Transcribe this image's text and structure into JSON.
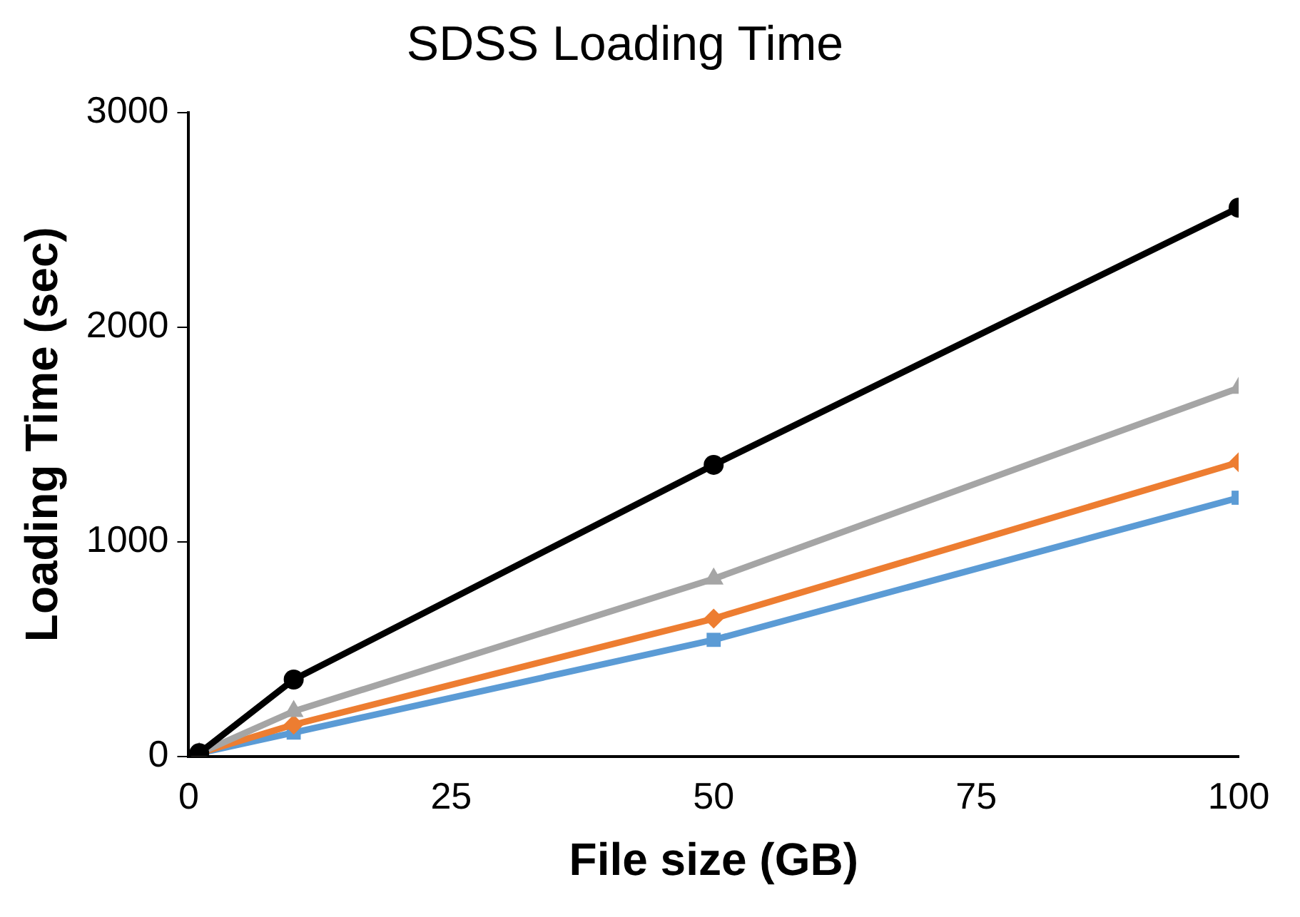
{
  "chart_data": {
    "type": "line",
    "title": "SDSS Loading Time",
    "xlabel": "File size (GB)",
    "ylabel": "Loading Time (sec)",
    "xlim": [
      0,
      100
    ],
    "xticks": [
      0,
      25,
      50,
      75,
      100
    ],
    "ylim": [
      0,
      3000
    ],
    "yticks": [
      0,
      1000,
      2000,
      3000
    ],
    "grid": false,
    "legend": false,
    "series": [
      {
        "color": "#5b9bd5",
        "marker": "square",
        "x": [
          1,
          10,
          50,
          100
        ],
        "values": [
          15,
          111,
          543,
          1205
        ]
      },
      {
        "color": "#ed7d31",
        "marker": "diamond",
        "x": [
          1,
          10,
          50,
          100
        ],
        "values": [
          15,
          148,
          642,
          1370
        ]
      },
      {
        "color": "#a5a5a5",
        "marker": "triangle",
        "x": [
          1,
          10,
          50,
          100
        ],
        "values": [
          15,
          210,
          827,
          1716
        ]
      },
      {
        "color": "#000000",
        "marker": "circle",
        "x": [
          1,
          10,
          50,
          100
        ],
        "values": [
          15,
          358,
          1358,
          2556
        ]
      }
    ]
  }
}
